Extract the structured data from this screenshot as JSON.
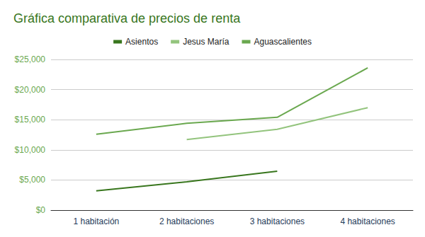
{
  "chart_data": {
    "type": "line",
    "title": "Gráfica comparativa de precios de renta",
    "categories": [
      "1 habitación",
      "2 habitaciones",
      "3 habitaciones",
      "4 habitaciones"
    ],
    "series": [
      {
        "name": "Asientos",
        "color": "#38761d",
        "values": [
          3200,
          4700,
          6450,
          null
        ]
      },
      {
        "name": "Jesus María",
        "color": "#93c47d",
        "values": [
          null,
          11700,
          13400,
          17000
        ]
      },
      {
        "name": "Aguascalientes",
        "color": "#6aa84f",
        "values": [
          12600,
          14400,
          15400,
          23600
        ]
      }
    ],
    "ylim": [
      0,
      25000
    ],
    "yticks": [
      {
        "value": 0,
        "label": "$0"
      },
      {
        "value": 5000,
        "label": "$5,000"
      },
      {
        "value": 10000,
        "label": "$10,000"
      },
      {
        "value": 15000,
        "label": "$15,000"
      },
      {
        "value": 20000,
        "label": "$20,000"
      },
      {
        "value": 25000,
        "label": "$25,000"
      }
    ],
    "grid": true,
    "legend": "top"
  }
}
